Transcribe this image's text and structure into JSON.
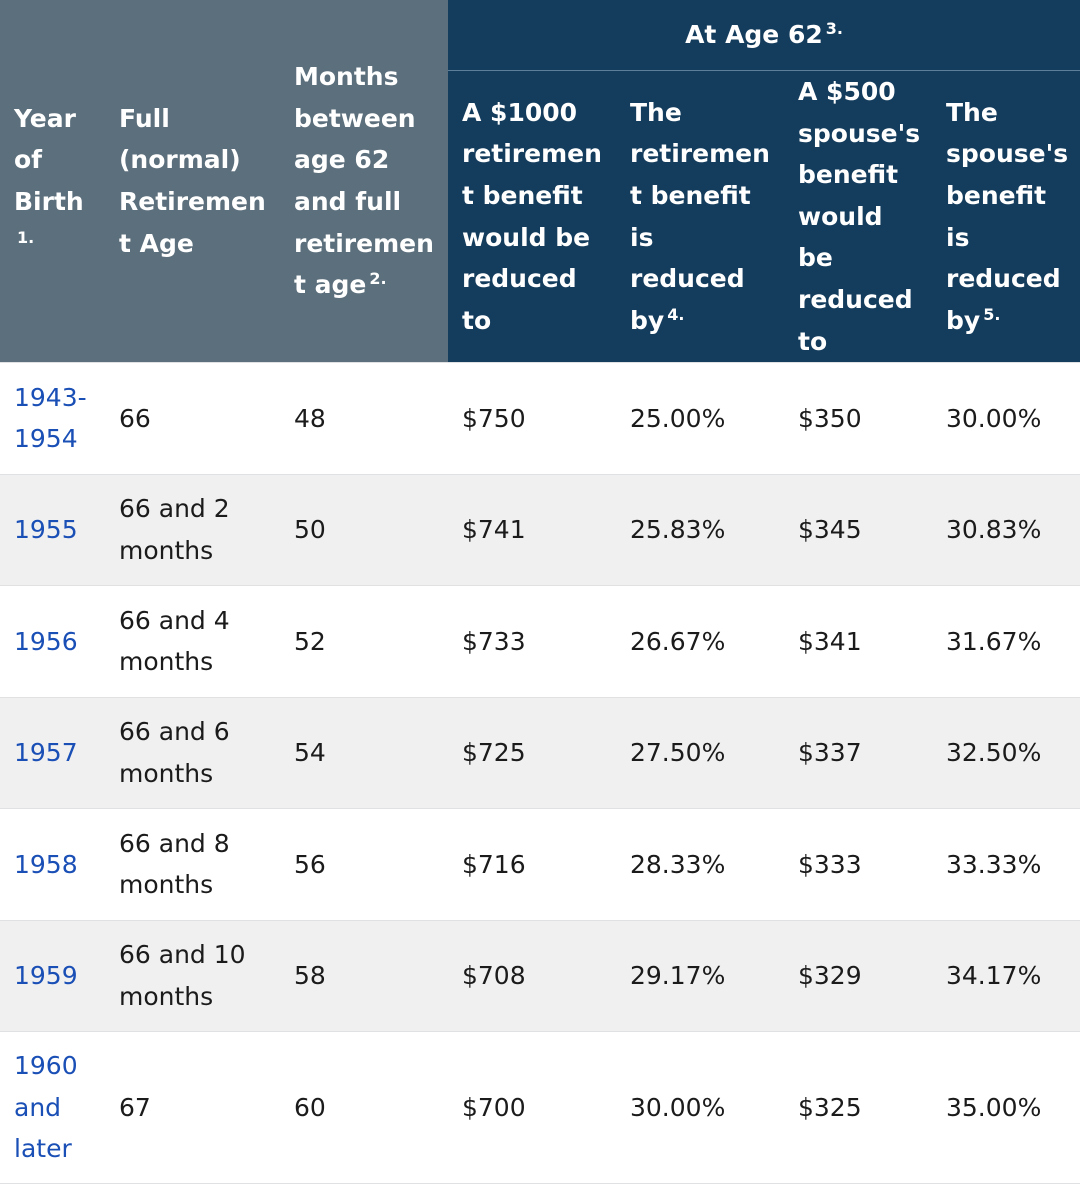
{
  "header": {
    "year_of_birth": "Year of Birth",
    "year_of_birth_note": "1.",
    "full_retirement_age": "Full (normal) Retirement Age",
    "months_between": "Months between age 62 and full retirement age",
    "months_between_note": "2.",
    "group_title": "At Age 62",
    "group_title_note": "3.",
    "col_benefit_1000": "A $1000 retirement benefit would be reduced to",
    "col_retirement_reduced": "The retirement benefit is reduced by",
    "col_retirement_reduced_note": "4.",
    "col_benefit_500": "A $500 spouse's benefit would be reduced to",
    "col_spouse_reduced": "The spouse's benefit is reduced by",
    "col_spouse_reduced_note": "5."
  },
  "rows": [
    {
      "year": "1943-1954",
      "fra": "66",
      "months": "48",
      "benefit_1000": "$750",
      "retirement_reduction": "25.00%",
      "benefit_500": "$350",
      "spouse_reduction": "30.00%"
    },
    {
      "year": "1955",
      "fra": "66 and 2 months",
      "months": "50",
      "benefit_1000": "$741",
      "retirement_reduction": "25.83%",
      "benefit_500": "$345",
      "spouse_reduction": "30.83%"
    },
    {
      "year": "1956",
      "fra": "66 and 4 months",
      "months": "52",
      "benefit_1000": "$733",
      "retirement_reduction": "26.67%",
      "benefit_500": "$341",
      "spouse_reduction": "31.67%"
    },
    {
      "year": "1957",
      "fra": "66 and 6 months",
      "months": "54",
      "benefit_1000": "$725",
      "retirement_reduction": "27.50%",
      "benefit_500": "$337",
      "spouse_reduction": "32.50%"
    },
    {
      "year": "1958",
      "fra": "66 and 8 months",
      "months": "56",
      "benefit_1000": "$716",
      "retirement_reduction": "28.33%",
      "benefit_500": "$333",
      "spouse_reduction": "33.33%"
    },
    {
      "year": "1959",
      "fra": "66 and 10 months",
      "months": "58",
      "benefit_1000": "$708",
      "retirement_reduction": "29.17%",
      "benefit_500": "$329",
      "spouse_reduction": "34.17%"
    },
    {
      "year": "1960 and later",
      "fra": "67",
      "months": "60",
      "benefit_1000": "$700",
      "retirement_reduction": "30.00%",
      "benefit_500": "$325",
      "spouse_reduction": "35.00%"
    }
  ],
  "colors": {
    "header_gray": "#5c6f7c",
    "header_navy": "#143c5c",
    "link_blue": "#1a4fb6",
    "stripe": "#f0f0f0"
  }
}
